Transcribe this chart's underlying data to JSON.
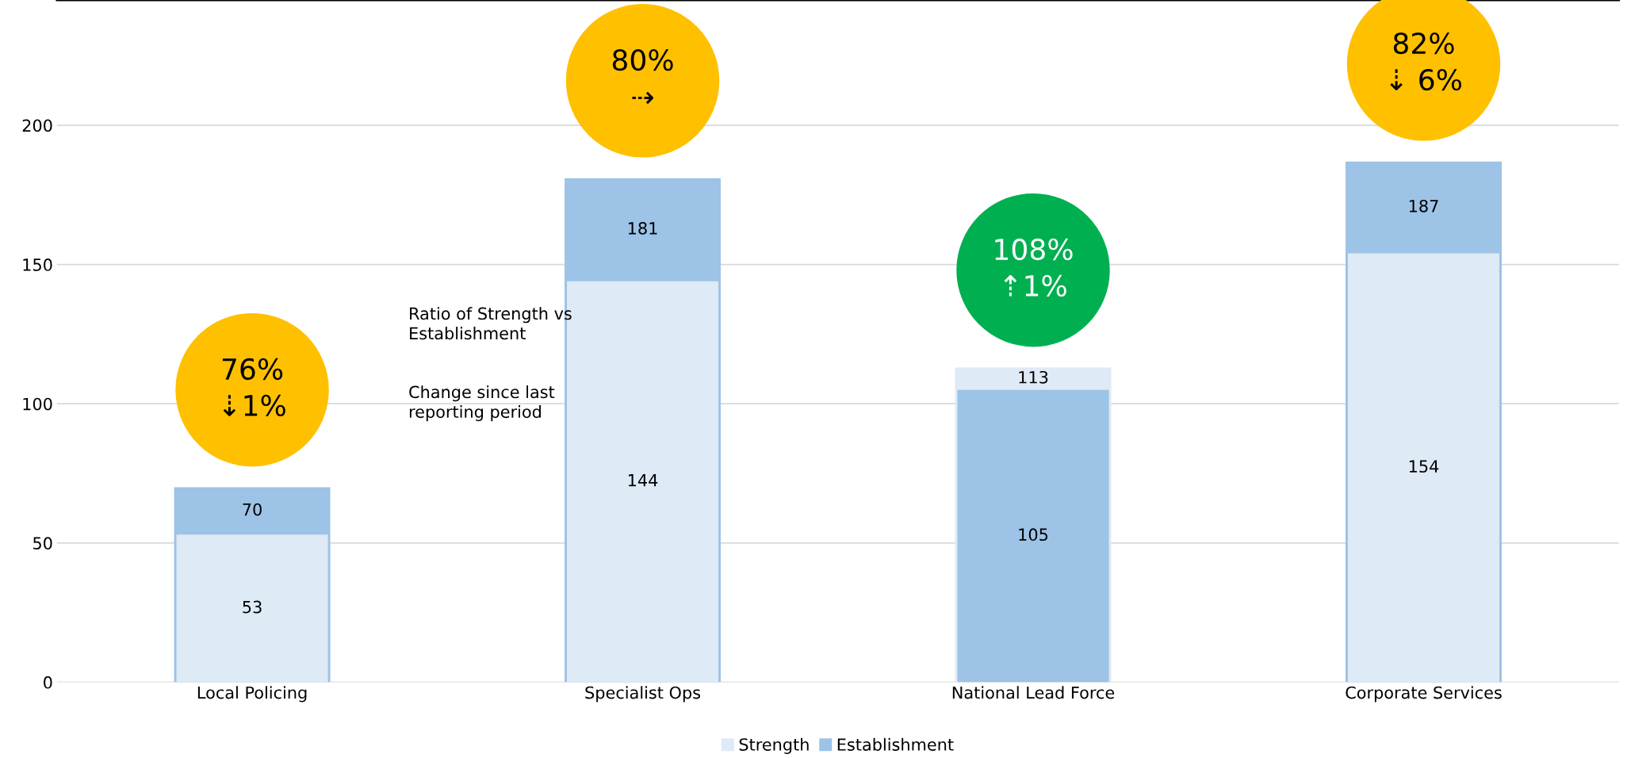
{
  "chart_data": {
    "type": "bar",
    "categories": [
      "Local Policing",
      "Specialist Ops",
      "National Lead Force",
      "Corporate Services"
    ],
    "series": [
      {
        "name": "Strength",
        "color": "#deeaf6",
        "values": [
          53,
          144,
          113,
          154
        ]
      },
      {
        "name": "Establishment",
        "color": "#9dc3e6",
        "values": [
          70,
          181,
          105,
          187
        ]
      }
    ],
    "ylim": [
      0,
      245
    ],
    "yticks": [
      0,
      50,
      100,
      150,
      200
    ],
    "grid": "y",
    "legend": "bottom",
    "data_labels": true,
    "annotations": [
      "76%\n⇣1%",
      "80%\n⇢",
      "108%\n⇡1%",
      "82%\n⇣ 6%",
      "Ratio of Strength vs\nEstablishment",
      "Change since last\nreporting period"
    ]
  }
}
